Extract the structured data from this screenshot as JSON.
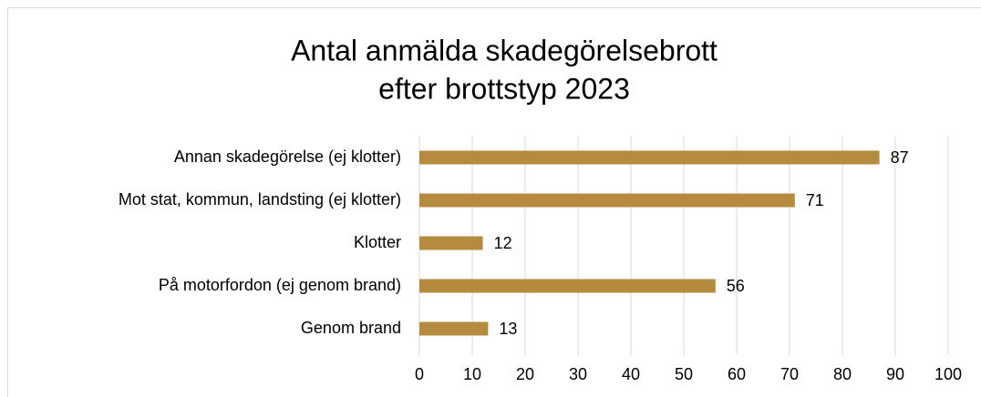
{
  "chart_data": {
    "type": "hbar",
    "title": [
      "Antal anmälda skadegörelsebrott",
      "efter brottstyp 2023"
    ],
    "categories": [
      "Annan skadegörelse (ej klotter)",
      "Mot stat, kommun, landsting (ej klotter)",
      "Klotter",
      "På motorfordon (ej genom brand)",
      "Genom brand"
    ],
    "values": [
      87,
      71,
      12,
      56,
      13
    ],
    "color": "#b58b40",
    "xlim": [
      0,
      100
    ],
    "xticks": [
      0,
      10,
      20,
      30,
      40,
      50,
      60,
      70,
      80,
      90,
      100
    ],
    "grid": true
  }
}
